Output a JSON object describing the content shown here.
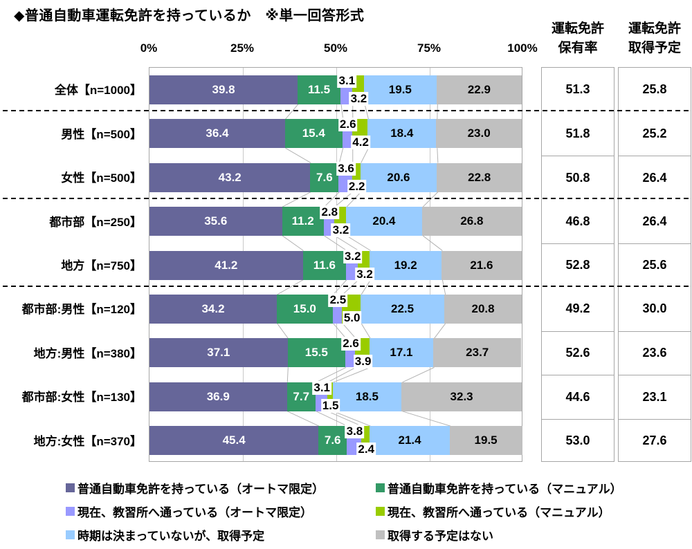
{
  "title": "◆普通自動車運転免許を持っているか　※単一回答形式",
  "chart_data": {
    "type": "bar",
    "stacked": true,
    "orientation": "horizontal",
    "xlim": [
      0,
      100
    ],
    "x_ticks": [
      "0%",
      "25%",
      "50%",
      "75%",
      "100%"
    ],
    "grid": true,
    "legend_position": "bottom",
    "categories": [
      "全体【n=1000】",
      "男性【n=500】",
      "女性【n=500】",
      "都市部【n=250】",
      "地方【n=750】",
      "都市部:男性【n=120】",
      "地方:男性【n=380】",
      "都市部:女性【n=130】",
      "地方:女性【n=370】"
    ],
    "group_separators_after_rows": [
      0,
      2,
      4
    ],
    "series": [
      {
        "name": "普通自動車免許を持っている（オートマ限定）",
        "color": "#666699",
        "label_color": "#ffffff",
        "label_position": "inside",
        "values": [
          39.8,
          36.4,
          43.2,
          35.6,
          41.2,
          34.2,
          37.1,
          36.9,
          45.4
        ]
      },
      {
        "name": "普通自動車免許を持っている（マニュアル）",
        "color": "#339966",
        "label_color": "#ffffff",
        "label_position": "inside",
        "values": [
          11.5,
          15.4,
          7.6,
          11.2,
          11.6,
          15.0,
          15.5,
          7.7,
          7.6
        ]
      },
      {
        "name": "現在、教習所へ通っている（オートマ限定）",
        "color": "#9999FF",
        "label_color": "#000000",
        "label_position": "above",
        "values": [
          3.1,
          2.6,
          3.6,
          2.8,
          3.2,
          2.5,
          2.6,
          3.1,
          3.8
        ]
      },
      {
        "name": "現在、教習所へ通っている（マニュアル）",
        "color": "#99CC00",
        "label_color": "#000000",
        "label_position": "below",
        "values": [
          3.2,
          4.2,
          2.2,
          3.2,
          3.2,
          5.0,
          3.9,
          1.5,
          2.4
        ]
      },
      {
        "name": "時期は決まっていないが、取得予定",
        "color": "#99CCFF",
        "label_color": "#000000",
        "label_position": "inside",
        "values": [
          19.5,
          18.4,
          20.6,
          20.4,
          19.2,
          22.5,
          17.1,
          18.5,
          21.4
        ]
      },
      {
        "name": "取得する予定はない",
        "color": "#C0C0C0",
        "label_color": "#000000",
        "label_position": "inside",
        "values": [
          22.9,
          23.0,
          22.8,
          26.8,
          21.6,
          20.8,
          23.7,
          32.3,
          19.5
        ]
      }
    ]
  },
  "summary_table": {
    "columns": [
      {
        "header": [
          "運転免許",
          "保有率"
        ],
        "values": [
          51.3,
          51.8,
          50.8,
          46.8,
          52.8,
          49.2,
          52.6,
          44.6,
          53.0
        ]
      },
      {
        "header": [
          "運転免許",
          "取得予定"
        ],
        "values": [
          25.8,
          25.2,
          26.4,
          26.4,
          25.6,
          30.0,
          23.6,
          23.1,
          27.6
        ]
      }
    ]
  },
  "legend": {
    "items": [
      {
        "label": "普通自動車免許を持っている（オートマ限定）",
        "color": "#666699"
      },
      {
        "label": "普通自動車免許を持っている（マニュアル）",
        "color": "#339966"
      },
      {
        "label": "現在、教習所へ通っている（オートマ限定）",
        "color": "#9999FF"
      },
      {
        "label": "現在、教習所へ通っている（マニュアル）",
        "color": "#99CC00"
      },
      {
        "label": "時期は決まっていないが、取得予定",
        "color": "#99CCFF"
      },
      {
        "label": "取得する予定はない",
        "color": "#C0C0C0"
      }
    ]
  },
  "colors": {
    "grid": "#C9C9C9",
    "frame": "#A6A6A6",
    "connector": "#B3B3B3",
    "separator": "#000000"
  }
}
